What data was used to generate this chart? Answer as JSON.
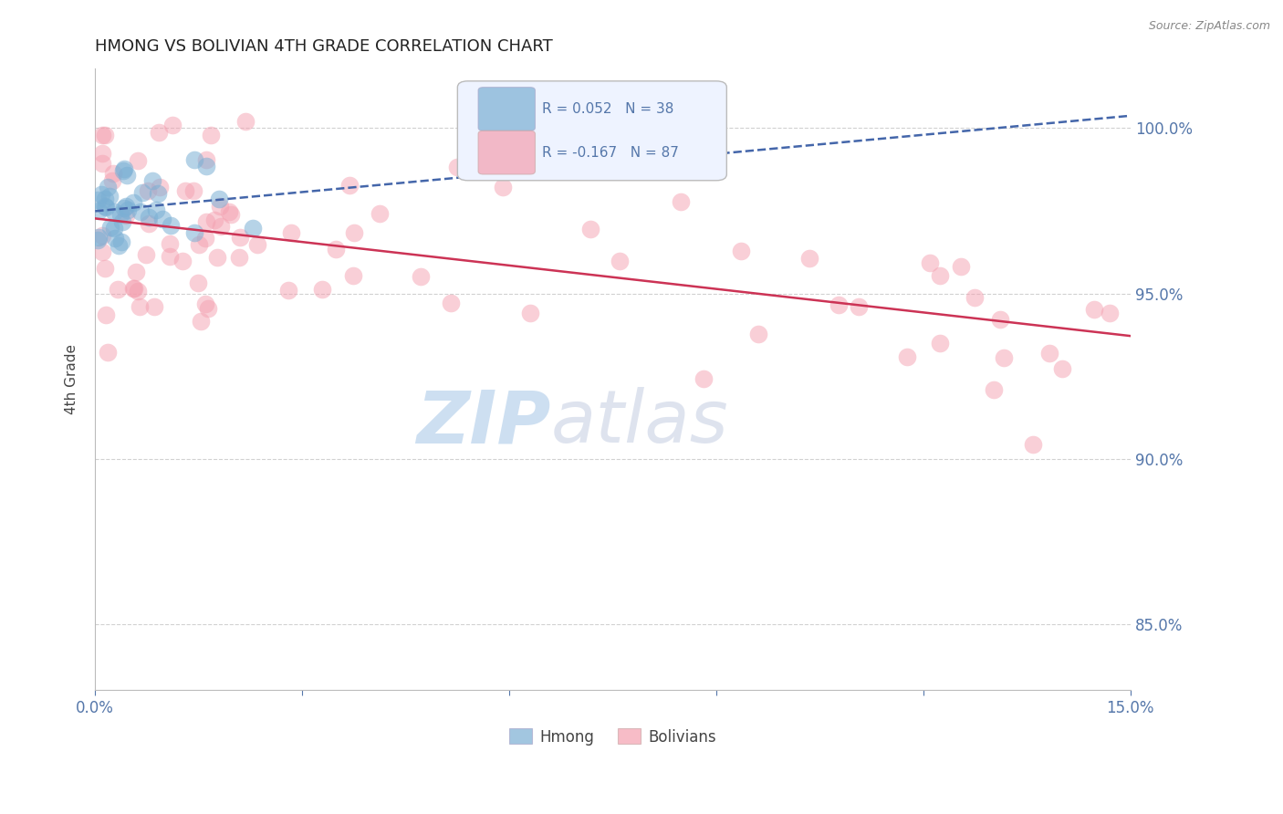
{
  "title": "HMONG VS BOLIVIAN 4TH GRADE CORRELATION CHART",
  "source_text": "Source: ZipAtlas.com",
  "ylabel": "4th Grade",
  "xlim": [
    0.0,
    0.15
  ],
  "ylim": [
    0.83,
    1.018
  ],
  "yticks": [
    0.85,
    0.9,
    0.95,
    1.0
  ],
  "ytick_labels": [
    "85.0%",
    "90.0%",
    "95.0%",
    "100.0%"
  ],
  "hmong_R": 0.052,
  "hmong_N": 38,
  "bolivian_R": -0.167,
  "bolivian_N": 87,
  "hmong_color": "#7BAFD4",
  "bolivian_color": "#F4A0B0",
  "hmong_line_color": "#4466AA",
  "bolivian_line_color": "#CC3355",
  "watermark_zip": "ZIP",
  "watermark_atlas": "atlas",
  "watermark_color": "#C8DCF0",
  "background_color": "#FFFFFF",
  "legend_box_color": "#EEF3FF",
  "title_color": "#222222",
  "axis_label_color": "#444444",
  "tick_color": "#5577AA",
  "grid_color": "#CCCCCC"
}
